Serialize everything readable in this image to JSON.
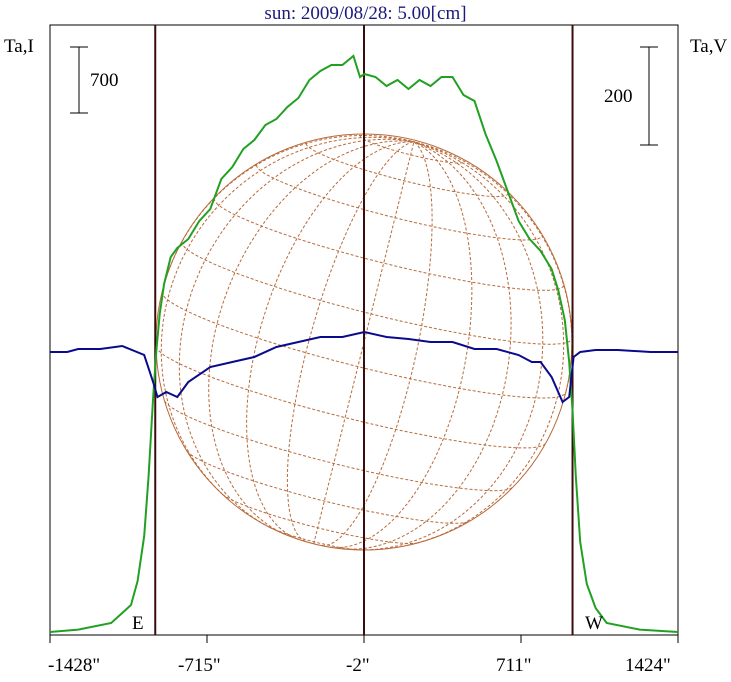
{
  "chart_data": {
    "type": "line",
    "title": "sun: 2009/08/28: 5.00[cm]",
    "left_axis_label": "Ta,I",
    "right_axis_label": "Ta,V",
    "left_scale_bar": "700",
    "right_scale_bar": "200",
    "x_ticks": [
      "-1428\"",
      "-715\"",
      "-2\"",
      "711\"",
      "1424\""
    ],
    "x_tick_values": [
      -1428,
      -715,
      -2,
      711,
      1424
    ],
    "limb_labels": {
      "east": "E",
      "west": "W"
    },
    "limb_lines_arcsec": [
      -950,
      -2,
      945
    ],
    "series": [
      {
        "name": "Ta,I",
        "color": "#22a022",
        "unit_scale": 700,
        "x": [
          -1428,
          -1300,
          -1150,
          -1060,
          -1030,
          -1000,
          -980,
          -960,
          -945,
          -930,
          -910,
          -880,
          -850,
          -800,
          -750,
          -700,
          -650,
          -600,
          -550,
          -500,
          -450,
          -400,
          -350,
          -300,
          -250,
          -200,
          -150,
          -100,
          -50,
          -20,
          0,
          50,
          100,
          150,
          200,
          250,
          300,
          350,
          400,
          450,
          500,
          550,
          600,
          650,
          700,
          750,
          800,
          850,
          880,
          910,
          930,
          945,
          960,
          980,
          1010,
          1050,
          1100,
          1250,
          1424
        ],
        "y": [
          0,
          0.04,
          0.15,
          0.45,
          0.85,
          1.6,
          2.6,
          3.9,
          4.7,
          5.3,
          5.8,
          6.25,
          6.4,
          6.55,
          6.85,
          7.05,
          7.55,
          7.75,
          8.05,
          8.2,
          8.45,
          8.55,
          8.75,
          8.9,
          9.2,
          9.35,
          9.45,
          9.45,
          9.6,
          9.25,
          9.3,
          9.25,
          9.1,
          9.2,
          9.05,
          9.2,
          9.1,
          9.25,
          9.25,
          8.95,
          8.85,
          8.3,
          7.85,
          7.35,
          6.85,
          6.55,
          6.35,
          6.05,
          5.7,
          5.2,
          4.5,
          3.7,
          2.6,
          1.5,
          0.8,
          0.4,
          0.15,
          0.04,
          0
        ]
      },
      {
        "name": "Ta,V",
        "color": "#0a0a8c",
        "unit_scale": 200,
        "x": [
          -1428,
          -1350,
          -1300,
          -1200,
          -1100,
          -1000,
          -960,
          -940,
          -900,
          -850,
          -800,
          -700,
          -600,
          -500,
          -400,
          -300,
          -200,
          -100,
          0,
          100,
          200,
          300,
          400,
          500,
          600,
          700,
          760,
          800,
          850,
          900,
          930,
          950,
          980,
          1050,
          1150,
          1300,
          1424
        ],
        "y": [
          0,
          0,
          0.03,
          0.03,
          0.06,
          -0.03,
          -0.3,
          -0.45,
          -0.4,
          -0.45,
          -0.3,
          -0.15,
          -0.1,
          -0.05,
          0.05,
          0.1,
          0.15,
          0.15,
          0.2,
          0.15,
          0.13,
          0.1,
          0.1,
          0.03,
          0.03,
          -0.03,
          -0.1,
          -0.1,
          -0.25,
          -0.5,
          -0.45,
          -0.05,
          0,
          0.02,
          0.02,
          0,
          0
        ]
      }
    ]
  }
}
